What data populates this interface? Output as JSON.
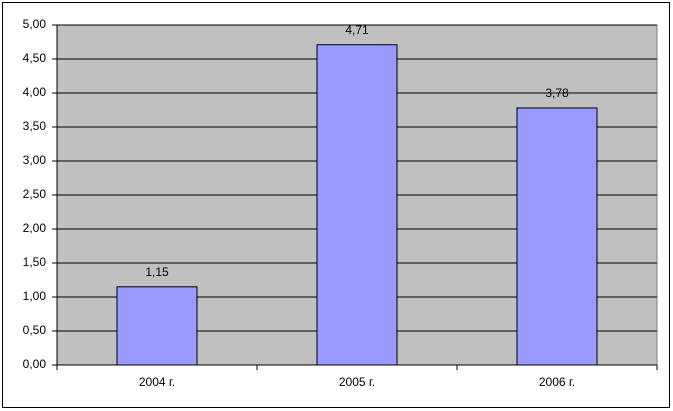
{
  "chart_data": {
    "type": "bar",
    "categories": [
      "2004 г.",
      "2005 г.",
      "2006 г."
    ],
    "values": [
      1.15,
      4.71,
      3.78
    ],
    "value_labels": [
      "1,15",
      "4,71",
      "3,78"
    ],
    "color": "#9999ff",
    "plot_background": "#c0c0c0",
    "ylim": [
      0,
      5
    ],
    "yticks": [
      {
        "value": 0,
        "label": "0,00"
      },
      {
        "value": 0.5,
        "label": "0,50"
      },
      {
        "value": 1,
        "label": "1,00"
      },
      {
        "value": 1.5,
        "label": "1,50"
      },
      {
        "value": 2,
        "label": "2,00"
      },
      {
        "value": 2.5,
        "label": "2,50"
      },
      {
        "value": 3,
        "label": "3,00"
      },
      {
        "value": 3.5,
        "label": "3,50"
      },
      {
        "value": 4,
        "label": "4,00"
      },
      {
        "value": 4.5,
        "label": "4,50"
      },
      {
        "value": 5,
        "label": "5,00"
      }
    ],
    "grid": true
  }
}
